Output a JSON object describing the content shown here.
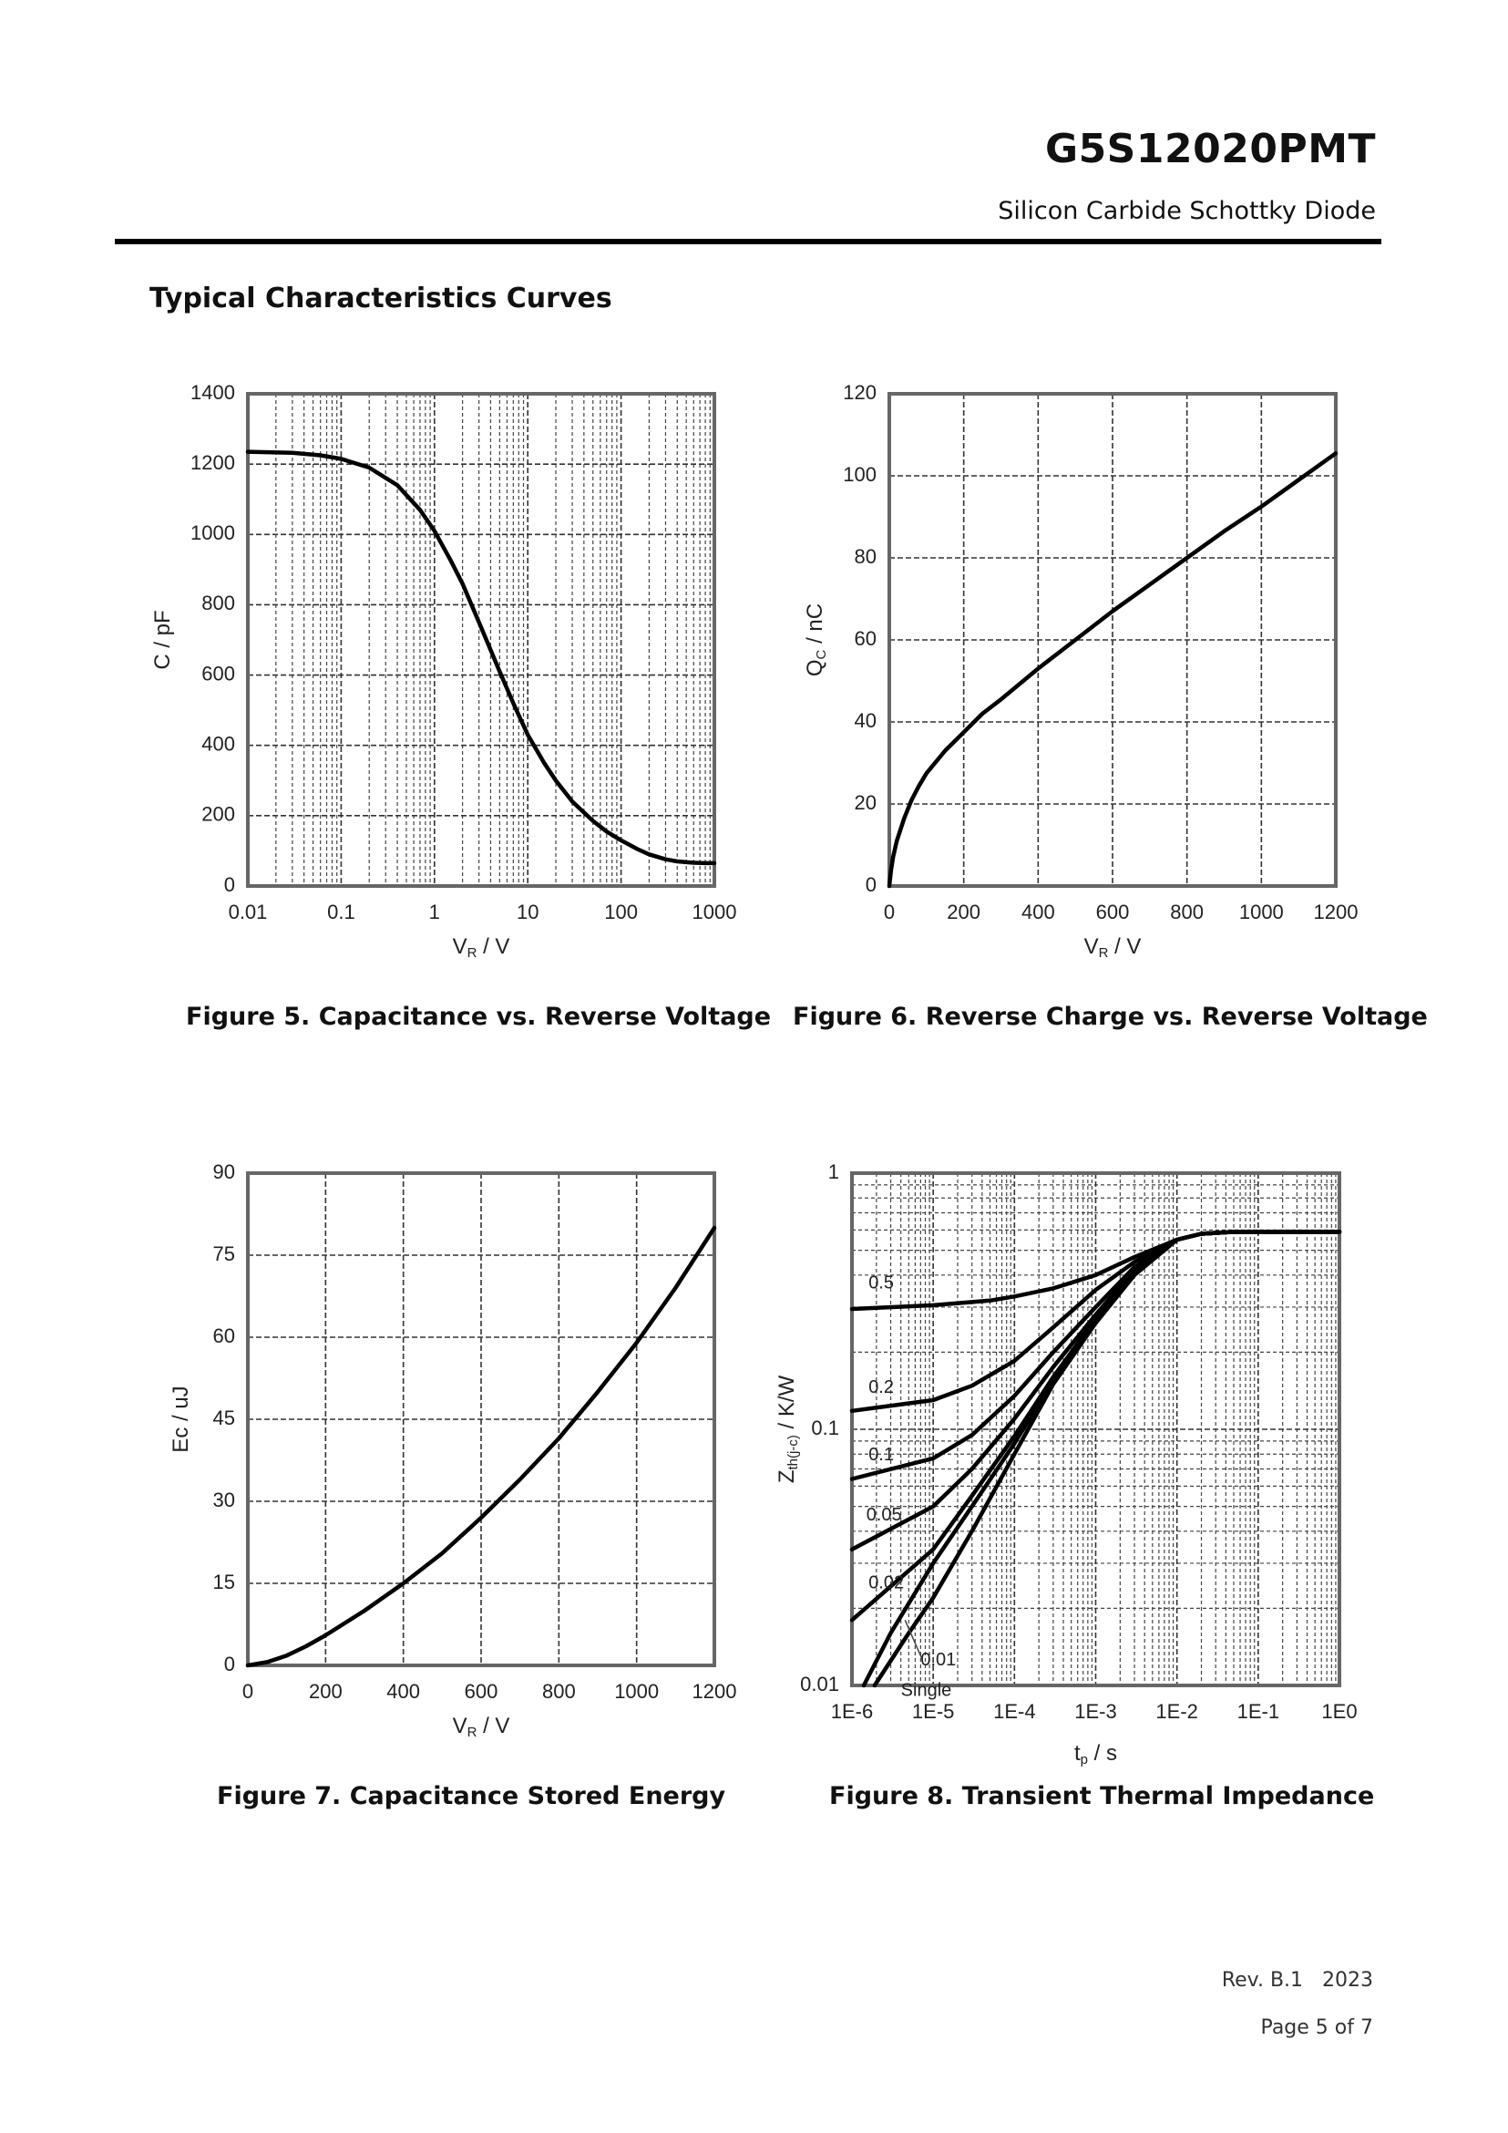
{
  "header": {
    "part_number": "G5S12020PMT",
    "subtitle": "Silicon Carbide Schottky Diode",
    "section_title": "Typical Characteristics Curves"
  },
  "figures": [
    {
      "caption": "Figure 5. Capacitance vs. Reverse Voltage"
    },
    {
      "caption": "Figure 6. Reverse Charge vs. Reverse Voltage"
    },
    {
      "caption": "Figure 7. Capacitance Stored Energy"
    },
    {
      "caption": "Figure 8. Transient Thermal Impedance"
    }
  ],
  "footer": {
    "revision": "Rev. B.1   2023",
    "page": "Page 5 of 7"
  },
  "chart_data": [
    {
      "id": "fig5",
      "type": "line",
      "title": "Figure 5. Capacitance vs. Reverse Voltage",
      "xscale": "log",
      "xlabel": "V",
      "xlabel_sub": "R",
      "xlabel_tail": " / V",
      "ylabel": "C / pF",
      "xlim": [
        0.01,
        1000
      ],
      "ylim": [
        0,
        1400
      ],
      "xticks": [
        0.01,
        0.1,
        1,
        10,
        100,
        1000
      ],
      "xtick_labels": [
        "0.01",
        "0.1",
        "1",
        "10",
        "100",
        "1000"
      ],
      "yticks": [
        0,
        200,
        400,
        600,
        800,
        1000,
        1200,
        1400
      ],
      "ytick_labels": [
        "0",
        "200",
        "400",
        "600",
        "800",
        "1000",
        "1200",
        "1400"
      ],
      "series": [
        {
          "name": "C",
          "x": [
            0.01,
            0.03,
            0.06,
            0.1,
            0.2,
            0.4,
            0.7,
            1,
            1.5,
            2,
            3,
            5,
            7,
            10,
            15,
            20,
            30,
            50,
            70,
            100,
            150,
            200,
            300,
            400,
            600,
            800,
            1000
          ],
          "y": [
            1235,
            1232,
            1225,
            1215,
            1190,
            1140,
            1070,
            1010,
            925,
            860,
            750,
            610,
            520,
            430,
            350,
            300,
            240,
            185,
            155,
            130,
            105,
            90,
            76,
            70,
            66,
            65,
            65
          ]
        }
      ]
    },
    {
      "id": "fig6",
      "type": "line",
      "title": "Figure 6. Reverse Charge vs. Reverse Voltage",
      "xscale": "linear",
      "xlabel": "V",
      "xlabel_sub": "R",
      "xlabel_tail": " / V",
      "ylabel": "Q",
      "ylabel_sub": "C",
      "ylabel_tail": " / nC",
      "xlim": [
        0,
        1200
      ],
      "ylim": [
        0,
        120
      ],
      "xticks": [
        0,
        200,
        400,
        600,
        800,
        1000,
        1200
      ],
      "xtick_labels": [
        "0",
        "200",
        "400",
        "600",
        "800",
        "1000",
        "1200"
      ],
      "yticks": [
        0,
        20,
        40,
        60,
        80,
        100,
        120
      ],
      "ytick_labels": [
        "0",
        "20",
        "40",
        "60",
        "80",
        "100",
        "120"
      ],
      "series": [
        {
          "name": "Qc",
          "x": [
            0,
            5,
            10,
            20,
            40,
            60,
            80,
            100,
            150,
            200,
            250,
            300,
            400,
            500,
            600,
            700,
            800,
            900,
            1000,
            1100,
            1200
          ],
          "y": [
            0,
            4,
            7,
            11,
            16.5,
            21,
            24.5,
            27.5,
            33,
            37.5,
            42,
            45.5,
            53,
            60,
            67,
            73.5,
            80,
            86.5,
            92.5,
            99,
            105.5
          ]
        }
      ]
    },
    {
      "id": "fig7",
      "type": "line",
      "title": "Figure 7. Capacitance Stored Energy",
      "xscale": "linear",
      "xlabel": "V",
      "xlabel_sub": "R",
      "xlabel_tail": " / V",
      "ylabel": "Ec / uJ",
      "xlim": [
        0,
        1200
      ],
      "ylim": [
        0,
        90
      ],
      "xticks": [
        0,
        200,
        400,
        600,
        800,
        1000,
        1200
      ],
      "xtick_labels": [
        "0",
        "200",
        "400",
        "600",
        "800",
        "1000",
        "1200"
      ],
      "yticks": [
        0,
        15,
        30,
        45,
        60,
        75,
        90
      ],
      "ytick_labels": [
        "0",
        "15",
        "30",
        "45",
        "60",
        "75",
        "90"
      ],
      "series": [
        {
          "name": "Ec",
          "x": [
            0,
            50,
            100,
            150,
            200,
            300,
            400,
            500,
            600,
            700,
            800,
            900,
            1000,
            1100,
            1200
          ],
          "y": [
            0,
            0.6,
            1.8,
            3.5,
            5.5,
            10,
            15,
            20.5,
            27,
            34,
            41.5,
            50,
            59,
            69,
            80
          ]
        }
      ]
    },
    {
      "id": "fig8",
      "type": "line",
      "title": "Figure 8. Transient Thermal Impedance",
      "xscale": "log",
      "yscale": "log",
      "xlabel": "t",
      "xlabel_sub": "p",
      "xlabel_tail": " / s",
      "ylabel": "Z",
      "ylabel_sub": "th(j-c)",
      "ylabel_tail": " / K/W",
      "xlim": [
        1e-06,
        1
      ],
      "ylim": [
        0.01,
        1
      ],
      "xticks": [
        1e-06,
        1e-05,
        0.0001,
        0.001,
        0.01,
        0.1,
        1
      ],
      "xtick_labels": [
        "1E-6",
        "1E-5",
        "1E-4",
        "1E-3",
        "1E-2",
        "1E-1",
        "1E0"
      ],
      "yticks": [
        0.01,
        0.1,
        1
      ],
      "ytick_labels": [
        "0.01",
        "0.1",
        "1"
      ],
      "series": [
        {
          "name": "0.5",
          "x": [
            1e-06,
            1e-05,
            5e-05,
            0.0001,
            0.0003,
            0.001,
            0.003,
            0.01,
            0.02,
            0.05,
            0.1,
            1
          ],
          "y": [
            0.295,
            0.305,
            0.318,
            0.33,
            0.355,
            0.4,
            0.47,
            0.55,
            0.58,
            0.59,
            0.59,
            0.59
          ]
        },
        {
          "name": "0.2",
          "x": [
            1e-06,
            1e-05,
            3e-05,
            0.0001,
            0.0003,
            0.001,
            0.003,
            0.01,
            0.02,
            0.05,
            1,
            1
          ],
          "y": [
            0.118,
            0.13,
            0.148,
            0.185,
            0.25,
            0.35,
            0.45,
            0.55,
            0.58,
            0.59,
            0.59,
            0.59
          ]
        },
        {
          "name": "0.1",
          "x": [
            1e-06,
            1e-05,
            3e-05,
            0.0001,
            0.0003,
            0.001,
            0.003,
            0.01,
            0.02,
            0.05,
            1
          ],
          "y": [
            0.064,
            0.077,
            0.095,
            0.135,
            0.2,
            0.3,
            0.43,
            0.55,
            0.58,
            0.59,
            0.59
          ]
        },
        {
          "name": "0.05",
          "x": [
            1e-06,
            1e-05,
            3e-05,
            0.0001,
            0.0003,
            0.001,
            0.003,
            0.01,
            0.02,
            0.05,
            1
          ],
          "y": [
            0.034,
            0.05,
            0.07,
            0.11,
            0.175,
            0.28,
            0.42,
            0.55,
            0.58,
            0.59,
            0.59
          ]
        },
        {
          "name": "0.02",
          "x": [
            1e-06,
            1e-05,
            3e-05,
            0.0001,
            0.0003,
            0.001,
            0.003,
            0.01,
            0.02,
            0.05,
            1
          ],
          "y": [
            0.018,
            0.034,
            0.055,
            0.094,
            0.16,
            0.27,
            0.41,
            0.55,
            0.58,
            0.59,
            0.59
          ]
        },
        {
          "name": "0.01",
          "x": [
            1.4e-06,
            3e-06,
            1e-05,
            3e-05,
            0.0001,
            0.0003,
            0.001,
            0.003,
            0.01,
            0.02,
            0.05,
            1
          ],
          "y": [
            0.01,
            0.016,
            0.03,
            0.05,
            0.088,
            0.155,
            0.265,
            0.41,
            0.55,
            0.58,
            0.59,
            0.59
          ]
        },
        {
          "name": "Single",
          "x": [
            1.9e-06,
            5e-06,
            1e-05,
            3e-05,
            0.0001,
            0.0003,
            0.001,
            0.003,
            0.01,
            0.02,
            0.05,
            1
          ],
          "y": [
            0.01,
            0.016,
            0.022,
            0.04,
            0.08,
            0.15,
            0.26,
            0.4,
            0.55,
            0.58,
            0.59,
            0.59
          ]
        }
      ],
      "annotations": [
        "0.5",
        "0.2",
        "0.1",
        "0.05",
        "0.02",
        "0.01",
        "Single"
      ]
    }
  ]
}
